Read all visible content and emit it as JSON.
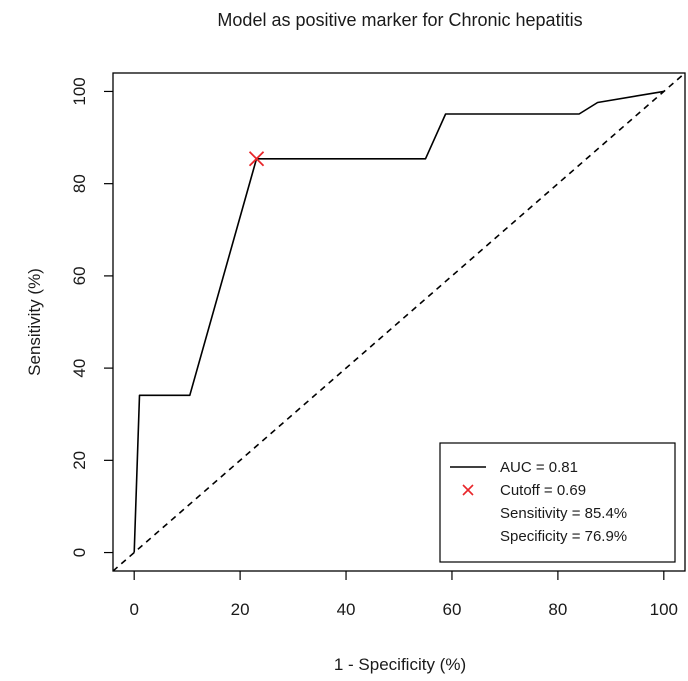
{
  "chart_data": {
    "type": "line",
    "title": "Model as positive marker for Chronic hepatitis",
    "xlabel": "1 - Specificity (%)",
    "ylabel": "Sensitivity (%)",
    "xlim": [
      -4,
      104
    ],
    "ylim": [
      -4,
      104
    ],
    "xticks": [
      0,
      20,
      40,
      60,
      80,
      100
    ],
    "yticks": [
      0,
      20,
      40,
      60,
      80,
      100
    ],
    "grid": false,
    "series": [
      {
        "name": "AUC = 0.81",
        "style": "solid",
        "color": "#000000",
        "x": [
          0,
          1,
          10.5,
          23.1,
          55,
          58.8,
          84,
          87.5,
          100
        ],
        "y": [
          0,
          34.1,
          34.1,
          85.4,
          85.4,
          95.1,
          95.1,
          97.6,
          100
        ]
      },
      {
        "name": "",
        "style": "dashed",
        "color": "#000000",
        "x": [
          -4,
          104
        ],
        "y": [
          -4,
          104
        ]
      }
    ],
    "cutoff_point": {
      "label": "Cutoff = 0.69",
      "x": 23.1,
      "y": 85.4,
      "color": "#e8262a",
      "marker": "x"
    },
    "legend": {
      "position": "bottom-right",
      "entries": [
        {
          "symbol": "line",
          "text": "AUC = 0.81"
        },
        {
          "symbol": "x",
          "text": "Cutoff = 0.69"
        },
        {
          "symbol": "none",
          "text": "Sensitivity = 85.4%"
        },
        {
          "symbol": "none",
          "text": "Specificity = 76.9%"
        }
      ]
    }
  }
}
